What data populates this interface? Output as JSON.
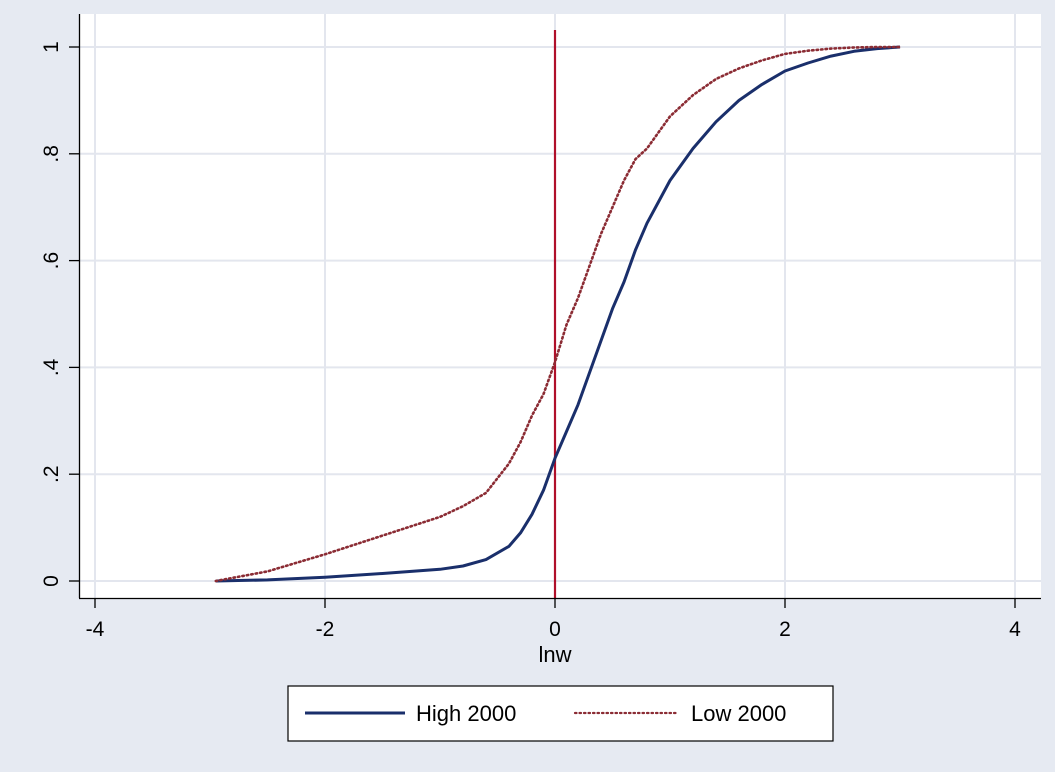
{
  "chart_data": {
    "type": "line",
    "title": "",
    "xlabel": "lnw",
    "ylabel": "",
    "xlim": [
      -4,
      4
    ],
    "ylim": [
      0,
      1
    ],
    "xticks": [
      -4,
      -2,
      0,
      2,
      4
    ],
    "xtick_labels": [
      "-4",
      "-2",
      "0",
      "2",
      "4"
    ],
    "yticks": [
      0,
      0.2,
      0.4,
      0.6,
      0.8,
      1
    ],
    "ytick_labels": [
      "0",
      ".2",
      ".4",
      ".6",
      ".8",
      "1"
    ],
    "grid": true,
    "legend_position": "bottom",
    "reference_line": {
      "x": 0,
      "color": "#b0102a"
    },
    "series": [
      {
        "name": "High 2000",
        "style": "solid",
        "color": "#1a2f6b",
        "x": [
          -2.95,
          -2.5,
          -2.0,
          -1.5,
          -1.0,
          -0.8,
          -0.6,
          -0.4,
          -0.3,
          -0.2,
          -0.1,
          0.0,
          0.1,
          0.2,
          0.3,
          0.4,
          0.5,
          0.6,
          0.7,
          0.8,
          0.9,
          1.0,
          1.1,
          1.2,
          1.4,
          1.6,
          1.8,
          2.0,
          2.2,
          2.4,
          2.6,
          2.8,
          3.0
        ],
        "y": [
          0.0,
          0.002,
          0.007,
          0.014,
          0.022,
          0.028,
          0.04,
          0.065,
          0.09,
          0.125,
          0.17,
          0.23,
          0.28,
          0.33,
          0.39,
          0.45,
          0.51,
          0.56,
          0.62,
          0.67,
          0.71,
          0.75,
          0.78,
          0.81,
          0.86,
          0.9,
          0.93,
          0.955,
          0.97,
          0.983,
          0.992,
          0.997,
          1.0
        ]
      },
      {
        "name": "Low 2000",
        "style": "dotted",
        "color": "#8b2c34",
        "x": [
          -2.95,
          -2.5,
          -2.0,
          -1.5,
          -1.0,
          -0.8,
          -0.6,
          -0.4,
          -0.3,
          -0.2,
          -0.1,
          0.0,
          0.1,
          0.2,
          0.3,
          0.4,
          0.5,
          0.6,
          0.7,
          0.8,
          0.9,
          1.0,
          1.2,
          1.4,
          1.6,
          1.8,
          2.0,
          2.2,
          2.4,
          2.6,
          2.8,
          3.0
        ],
        "y": [
          0.0,
          0.018,
          0.05,
          0.085,
          0.12,
          0.14,
          0.165,
          0.22,
          0.26,
          0.31,
          0.35,
          0.41,
          0.48,
          0.53,
          0.59,
          0.65,
          0.7,
          0.75,
          0.79,
          0.81,
          0.84,
          0.87,
          0.91,
          0.94,
          0.96,
          0.975,
          0.987,
          0.993,
          0.997,
          0.999,
          1.0,
          1.0
        ]
      }
    ]
  },
  "colors": {
    "background": "#e6eaf2",
    "plot_area": "#ffffff",
    "grid": "#e3e6ee"
  }
}
